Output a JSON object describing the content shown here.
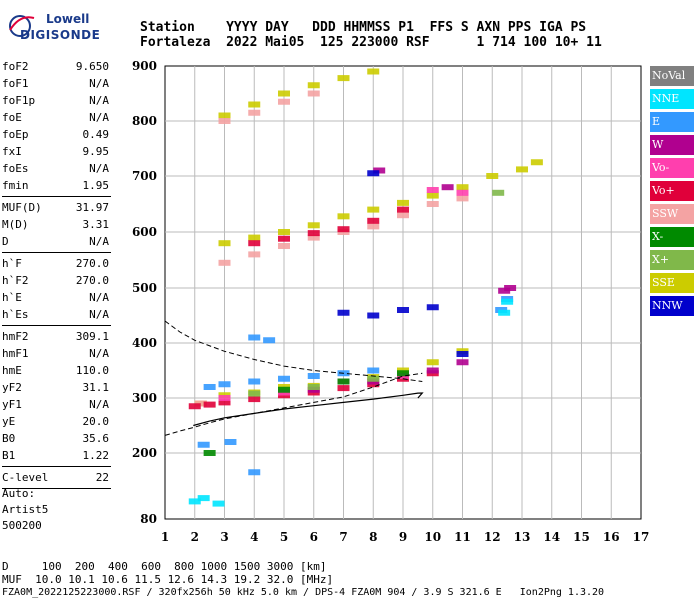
{
  "logo": {
    "top": "Lowell",
    "bottom": "DIGISONDE"
  },
  "header": {
    "line1": "Station    YYYY DAY   DDD HHMMSS P1  FFS S AXN PPS IGA PS",
    "line2": "Fortaleza  2022 Mai05  125 223000 RSF      1 714 100 10+ 11"
  },
  "params": [
    {
      "label": "foF2",
      "value": "9.650"
    },
    {
      "label": "foF1",
      "value": "N/A"
    },
    {
      "label": "foF1p",
      "value": "N/A"
    },
    {
      "label": "foE",
      "value": "N/A"
    },
    {
      "label": "foEp",
      "value": "0.49"
    },
    {
      "label": "fxI",
      "value": "9.95"
    },
    {
      "label": "foEs",
      "value": "N/A"
    },
    {
      "label": "fmin",
      "value": "1.95"
    },
    {
      "sep": true
    },
    {
      "label": "MUF(D)",
      "value": "31.97"
    },
    {
      "label": "M(D)",
      "value": "3.31"
    },
    {
      "label": "D",
      "value": "N/A"
    },
    {
      "sep": true
    },
    {
      "label": "h`F",
      "value": "270.0"
    },
    {
      "label": "h`F2",
      "value": "270.0"
    },
    {
      "label": "h`E",
      "value": "N/A"
    },
    {
      "label": "h`Es",
      "value": "N/A"
    },
    {
      "sep": true
    },
    {
      "label": "hmF2",
      "value": "309.1"
    },
    {
      "label": "hmF1",
      "value": "N/A"
    },
    {
      "label": "hmE",
      "value": "110.0"
    },
    {
      "label": "yF2",
      "value": "31.1"
    },
    {
      "label": "yF1",
      "value": "N/A"
    },
    {
      "label": "yE",
      "value": "20.0"
    },
    {
      "label": "B0",
      "value": "35.6"
    },
    {
      "label": "B1",
      "value": "1.22"
    },
    {
      "sep": true
    },
    {
      "label": "C-level",
      "value": "22"
    },
    {
      "sep": true
    }
  ],
  "auto": {
    "line1": "Auto:",
    "line2": "Artist5",
    "line3": "500200"
  },
  "legend": [
    {
      "label": "NoVal",
      "color": "#808080"
    },
    {
      "label": "NNE",
      "color": "#00e5ff"
    },
    {
      "label": "E",
      "color": "#3399ff"
    },
    {
      "label": "W",
      "color": "#b0008f"
    },
    {
      "label": "Vo-",
      "color": "#ff3fae"
    },
    {
      "label": "Vo+",
      "color": "#e0003a"
    },
    {
      "label": "SSW",
      "color": "#f4a3a3"
    },
    {
      "label": "X-",
      "color": "#008a00"
    },
    {
      "label": "X+",
      "color": "#80b84a"
    },
    {
      "label": "SSE",
      "color": "#cccc00"
    },
    {
      "label": "NNW",
      "color": "#0000cc"
    }
  ],
  "bottom": {
    "line1": "D     100  200  400  600  800 1000 1500 3000 [km]",
    "line2": "MUF  10.0 10.1 10.6 11.5 12.6 14.3 19.2 32.0 [MHz]"
  },
  "footer": "FZA0M_2022125223000.RSF / 320fx256h 50 kHz 5.0 km / DPS-4 FZA0M 904 / 3.9 S 321.6 E   Ion2Png 1.3.20",
  "chart_data": {
    "type": "scatter",
    "xlabel": "",
    "ylabel": "",
    "xlim": [
      1,
      17
    ],
    "ylim": [
      80,
      900
    ],
    "x_ticks": [
      1,
      2,
      3,
      4,
      5,
      6,
      7,
      8,
      9,
      10,
      11,
      12,
      13,
      14,
      15,
      16,
      17
    ],
    "y_ticks": [
      80,
      200,
      300,
      400,
      500,
      600,
      700,
      800,
      900
    ],
    "series": [
      {
        "name": "SSE",
        "color": "#cccc00",
        "points": [
          [
            2.2,
            290
          ],
          [
            3,
            305
          ],
          [
            4,
            310
          ],
          [
            5,
            320
          ],
          [
            6,
            322
          ],
          [
            7,
            330
          ],
          [
            8,
            338
          ],
          [
            9,
            350
          ],
          [
            10,
            365
          ],
          [
            11,
            385
          ],
          [
            3,
            580
          ],
          [
            4,
            590
          ],
          [
            5,
            600
          ],
          [
            6,
            612
          ],
          [
            7,
            628
          ],
          [
            8,
            640
          ],
          [
            9,
            652
          ],
          [
            10,
            665
          ],
          [
            11,
            680
          ],
          [
            12,
            700
          ],
          [
            13,
            712
          ],
          [
            13.5,
            725
          ],
          [
            3,
            810
          ],
          [
            4,
            830
          ],
          [
            5,
            850
          ],
          [
            6,
            865
          ],
          [
            7,
            878
          ],
          [
            8,
            890
          ]
        ]
      },
      {
        "name": "SSW",
        "color": "#f4a3a3",
        "points": [
          [
            2.2,
            290
          ],
          [
            3,
            545
          ],
          [
            4,
            560
          ],
          [
            5,
            575
          ],
          [
            6,
            590
          ],
          [
            7,
            600
          ],
          [
            8,
            610
          ],
          [
            9,
            630
          ],
          [
            10,
            650
          ],
          [
            11,
            660
          ],
          [
            3,
            800
          ],
          [
            4,
            815
          ],
          [
            5,
            835
          ],
          [
            6,
            850
          ]
        ]
      },
      {
        "name": "E",
        "color": "#3399ff",
        "points": [
          [
            2.5,
            320
          ],
          [
            3,
            325
          ],
          [
            4,
            330
          ],
          [
            5,
            335
          ],
          [
            6,
            340
          ],
          [
            7,
            345
          ],
          [
            8,
            350
          ],
          [
            2.3,
            215
          ],
          [
            3.2,
            220
          ],
          [
            4,
            165
          ],
          [
            12.5,
            480
          ],
          [
            12.3,
            460
          ],
          [
            4,
            410
          ],
          [
            4.5,
            405
          ]
        ]
      },
      {
        "name": "NNE",
        "color": "#00e5ff",
        "points": [
          [
            2,
            112
          ],
          [
            2.3,
            118
          ],
          [
            2.8,
            108
          ],
          [
            12.4,
            455
          ],
          [
            12.5,
            475
          ]
        ]
      },
      {
        "name": "Vo+",
        "color": "#e0003a",
        "points": [
          [
            2,
            285
          ],
          [
            2.5,
            288
          ],
          [
            3,
            292
          ],
          [
            4,
            298
          ],
          [
            5,
            305
          ],
          [
            6,
            310
          ],
          [
            7,
            318
          ],
          [
            8,
            325
          ],
          [
            9,
            335
          ],
          [
            10,
            345
          ],
          [
            4,
            580
          ],
          [
            5,
            588
          ],
          [
            6,
            598
          ],
          [
            7,
            605
          ],
          [
            8,
            620
          ],
          [
            9,
            640
          ]
        ]
      },
      {
        "name": "Vo-",
        "color": "#ff3fae",
        "points": [
          [
            3,
            300
          ],
          [
            5,
            310
          ],
          [
            7,
            330
          ],
          [
            9,
            340
          ],
          [
            10,
            675
          ],
          [
            11,
            670
          ]
        ]
      },
      {
        "name": "W",
        "color": "#b0008f",
        "points": [
          [
            6,
            315
          ],
          [
            8,
            330
          ],
          [
            10,
            350
          ],
          [
            11,
            365
          ],
          [
            10.5,
            680
          ],
          [
            12.4,
            495
          ],
          [
            12.6,
            500
          ],
          [
            8.2,
            710
          ]
        ]
      },
      {
        "name": "NNW",
        "color": "#0000cc",
        "points": [
          [
            7,
            455
          ],
          [
            8,
            450
          ],
          [
            9,
            460
          ],
          [
            10,
            465
          ],
          [
            11,
            380
          ],
          [
            8,
            705
          ]
        ]
      },
      {
        "name": "X-",
        "color": "#008a00",
        "points": [
          [
            5,
            315
          ],
          [
            7,
            330
          ],
          [
            9,
            345
          ],
          [
            2.5,
            200
          ]
        ]
      },
      {
        "name": "X+",
        "color": "#80b84a",
        "points": [
          [
            4,
            308
          ],
          [
            6,
            320
          ],
          [
            8,
            335
          ],
          [
            12.2,
            670
          ]
        ]
      }
    ],
    "profile_solid": [
      [
        1.95,
        250
      ],
      [
        2.5,
        258
      ],
      [
        3,
        264
      ],
      [
        4,
        272
      ],
      [
        5,
        280
      ],
      [
        6,
        286
      ],
      [
        7,
        292
      ],
      [
        8,
        298
      ],
      [
        9,
        305
      ],
      [
        9.5,
        309
      ],
      [
        9.65,
        309.1
      ],
      [
        9.5,
        300
      ]
    ],
    "profile_dashed": [
      [
        1.0,
        232
      ],
      [
        1.5,
        240
      ],
      [
        2,
        247
      ],
      [
        2.5,
        255
      ],
      [
        3,
        262
      ],
      [
        4,
        272
      ],
      [
        5,
        282
      ],
      [
        6,
        292
      ],
      [
        7,
        302
      ],
      [
        8,
        320
      ],
      [
        9,
        340
      ],
      [
        9.65,
        345
      ]
    ],
    "upper_dashed": [
      [
        1.0,
        440
      ],
      [
        1.5,
        420
      ],
      [
        2,
        405
      ],
      [
        3,
        385
      ],
      [
        4,
        370
      ],
      [
        5,
        358
      ],
      [
        6,
        350
      ],
      [
        7,
        345
      ],
      [
        8,
        340
      ],
      [
        9,
        335
      ],
      [
        9.65,
        330
      ]
    ]
  }
}
